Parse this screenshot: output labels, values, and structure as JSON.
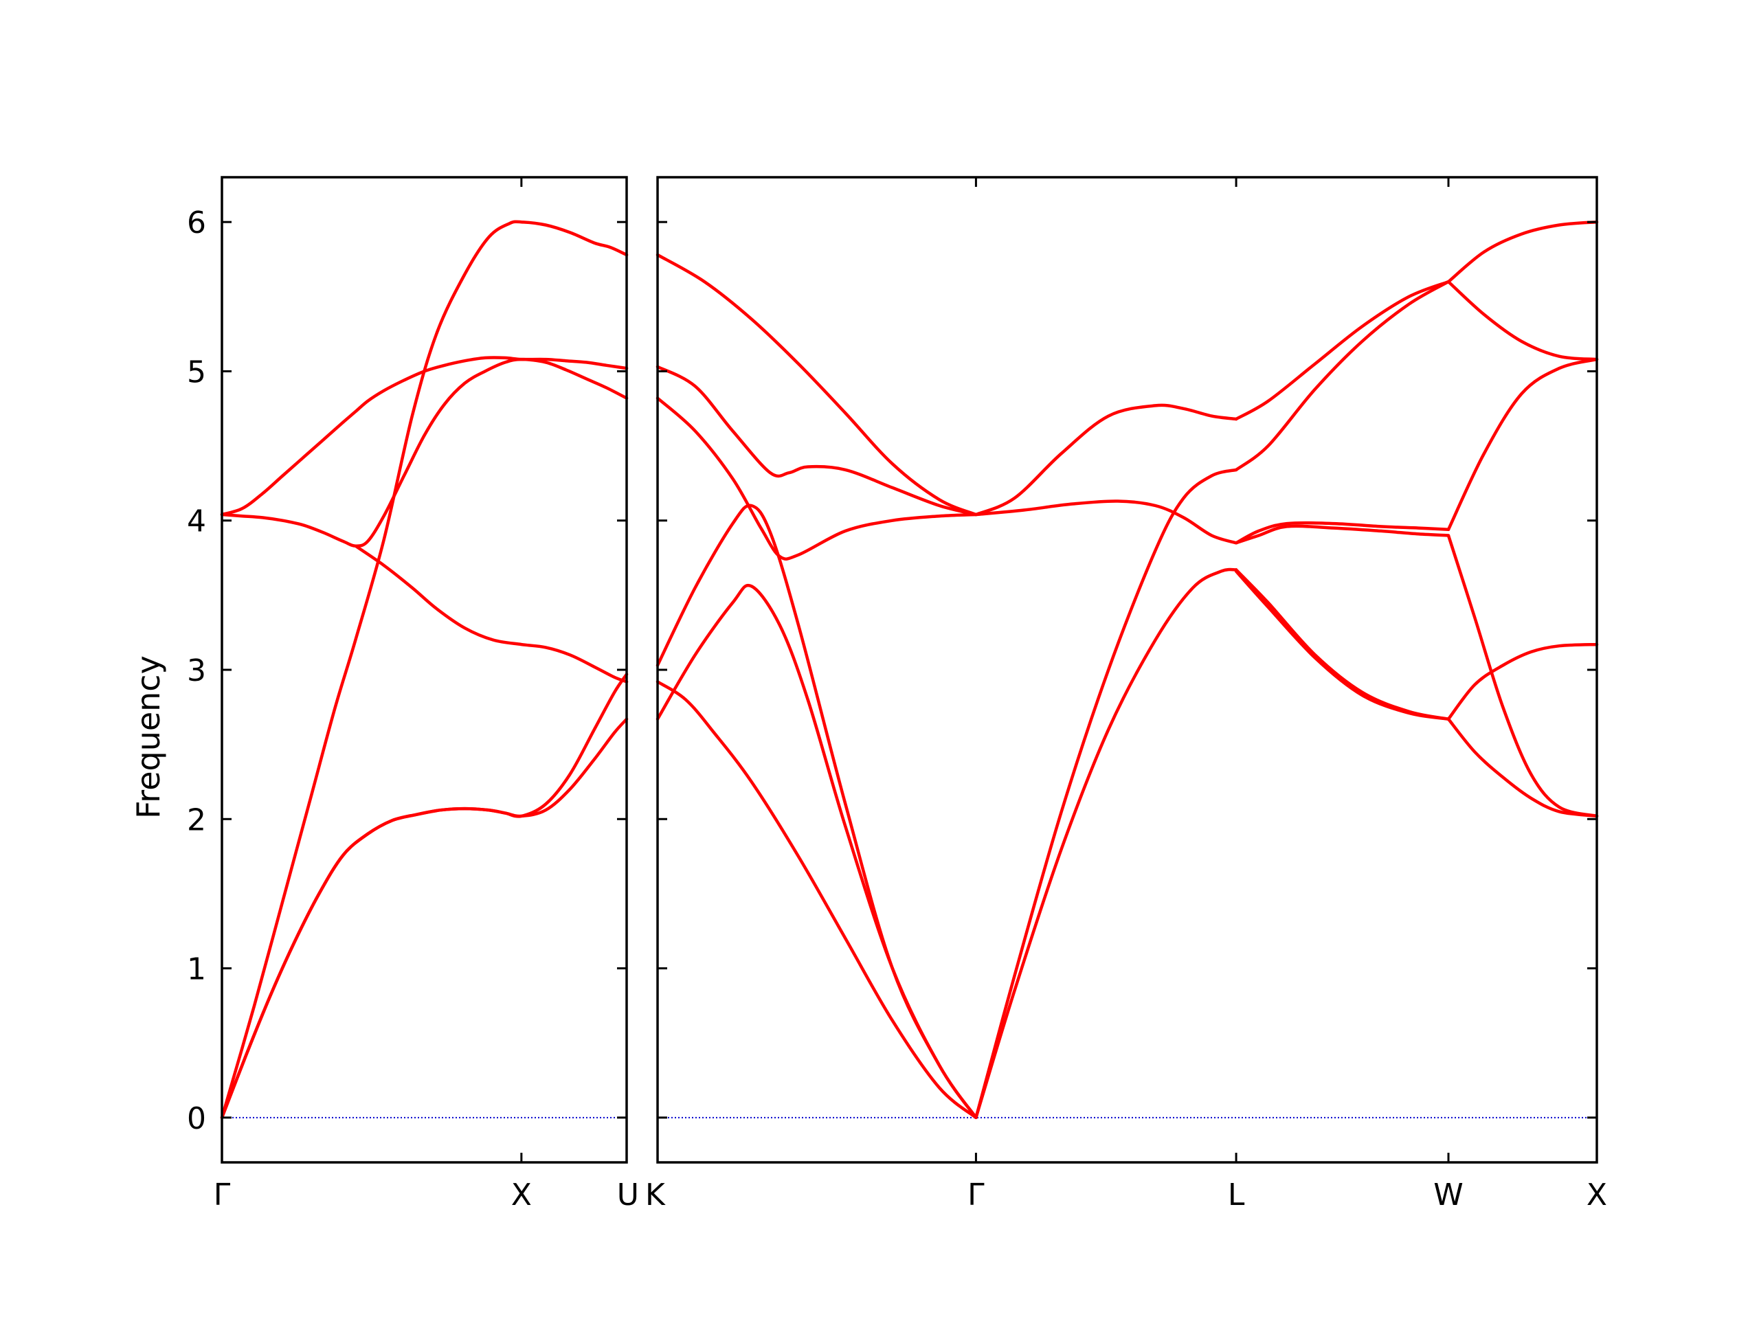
{
  "chart_data": {
    "type": "line",
    "ylabel": "Frequency",
    "ylim": [
      -0.3,
      6.3
    ],
    "yticks": [
      0,
      1,
      2,
      3,
      4,
      5,
      6
    ],
    "line_color": "#ff0000",
    "zero_line_color": "#0000cc",
    "grid": false,
    "panels": [
      {
        "xlim": [
          0,
          1
        ],
        "kpoints": [
          {
            "label": "Γ",
            "x": 0
          },
          {
            "label": "X",
            "x": 0.74
          },
          {
            "label": "U",
            "x": 1
          }
        ],
        "series": [
          {
            "x": [
              0,
              0.08,
              0.15,
              0.22,
              0.28,
              0.33,
              0.4,
              0.47,
              0.53,
              0.6,
              0.66,
              0.71,
              0.74,
              0.8,
              0.86,
              0.92,
              0.96,
              1
            ],
            "values": [
              0,
              0.75,
              1.45,
              2.15,
              2.75,
              3.2,
              3.87,
              4.7,
              5.25,
              5.65,
              5.9,
              5.99,
              6.0,
              5.98,
              5.93,
              5.86,
              5.83,
              5.78
            ]
          },
          {
            "x": [
              0,
              0.05,
              0.1,
              0.15,
              0.2,
              0.25,
              0.3,
              0.33,
              0.36,
              0.4,
              0.45,
              0.5,
              0.55,
              0.6,
              0.65,
              0.7,
              0.74,
              0.8,
              0.85,
              0.9,
              0.95,
              1
            ],
            "values": [
              4.04,
              4.08,
              4.18,
              4.3,
              4.42,
              4.54,
              4.66,
              4.73,
              4.8,
              4.87,
              4.94,
              5.0,
              5.04,
              5.07,
              5.09,
              5.09,
              5.08,
              5.08,
              5.07,
              5.06,
              5.04,
              5.02
            ]
          },
          {
            "x": [
              0,
              0.05,
              0.1,
              0.15,
              0.2,
              0.25,
              0.3,
              0.33,
              0.36,
              0.4,
              0.45,
              0.5,
              0.55,
              0.6,
              0.65,
              0.7,
              0.74,
              0.8,
              0.85,
              0.9,
              0.95,
              1
            ],
            "values": [
              4.04,
              4.03,
              4.02,
              4.0,
              3.97,
              3.92,
              3.86,
              3.83,
              3.86,
              4.03,
              4.3,
              4.57,
              4.78,
              4.92,
              5.0,
              5.06,
              5.08,
              5.06,
              5.01,
              4.95,
              4.89,
              4.82
            ]
          },
          {
            "x": [
              0,
              0.06,
              0.12,
              0.18,
              0.24,
              0.3,
              0.36,
              0.42,
              0.48,
              0.54,
              0.6,
              0.66,
              0.7,
              0.74,
              0.8,
              0.86,
              0.92,
              0.97,
              1
            ],
            "values": [
              0,
              0.42,
              0.82,
              1.18,
              1.5,
              1.76,
              1.9,
              1.99,
              2.03,
              2.06,
              2.07,
              2.06,
              2.04,
              2.02,
              2.1,
              2.3,
              2.6,
              2.85,
              2.97
            ]
          },
          {
            "x": [
              0,
              0.06,
              0.12,
              0.18,
              0.24,
              0.3,
              0.36,
              0.42,
              0.48,
              0.54,
              0.6,
              0.66,
              0.7,
              0.74,
              0.8,
              0.86,
              0.92,
              0.97,
              1
            ],
            "values": [
              0,
              0.42,
              0.82,
              1.18,
              1.5,
              1.76,
              1.9,
              1.99,
              2.03,
              2.06,
              2.07,
              2.06,
              2.04,
              2.02,
              2.06,
              2.2,
              2.4,
              2.58,
              2.67
            ]
          },
          {
            "x": [
              0.33,
              0.4,
              0.47,
              0.53,
              0.6,
              0.67,
              0.74,
              0.8,
              0.86,
              0.92,
              0.97,
              1
            ],
            "values": [
              3.83,
              3.7,
              3.55,
              3.41,
              3.28,
              3.2,
              3.17,
              3.15,
              3.1,
              3.02,
              2.95,
              2.92
            ]
          }
        ]
      },
      {
        "xlim": [
          0,
          1
        ],
        "kpoints": [
          {
            "label": "K",
            "x": 0
          },
          {
            "label": "Γ",
            "x": 0.339
          },
          {
            "label": "L",
            "x": 0.616
          },
          {
            "label": "W",
            "x": 0.842
          },
          {
            "label": "X",
            "x": 1
          }
        ],
        "series": [
          {
            "x": [
              0,
              0.05,
              0.1,
              0.15,
              0.2,
              0.25,
              0.3,
              0.339
            ],
            "values": [
              5.78,
              5.6,
              5.35,
              5.05,
              4.72,
              4.38,
              4.14,
              4.04
            ]
          },
          {
            "x": [
              0,
              0.04,
              0.08,
              0.12,
              0.14,
              0.16,
              0.2,
              0.25,
              0.3,
              0.339
            ],
            "values": [
              5.03,
              4.9,
              4.6,
              4.32,
              4.32,
              4.36,
              4.34,
              4.22,
              4.1,
              4.04
            ]
          },
          {
            "x": [
              0,
              0.04,
              0.08,
              0.11,
              0.13,
              0.15,
              0.2,
              0.25,
              0.3,
              0.339
            ],
            "values": [
              4.82,
              4.6,
              4.28,
              3.95,
              3.76,
              3.77,
              3.93,
              4.0,
              4.03,
              4.04
            ]
          },
          {
            "x": [
              0,
              0.04,
              0.08,
              0.1,
              0.12,
              0.15,
              0.2,
              0.25,
              0.3,
              0.339
            ],
            "values": [
              3.03,
              3.55,
              3.98,
              4.1,
              3.92,
              3.3,
              2.1,
              1.0,
              0.35,
              0
            ]
          },
          {
            "x": [
              0,
              0.04,
              0.08,
              0.1,
              0.13,
              0.16,
              0.2,
              0.25,
              0.3,
              0.339
            ],
            "values": [
              2.67,
              3.1,
              3.45,
              3.56,
              3.3,
              2.8,
              1.95,
              1.0,
              0.35,
              0
            ]
          },
          {
            "x": [
              0,
              0.03,
              0.06,
              0.1,
              0.15,
              0.2,
              0.25,
              0.3,
              0.339
            ],
            "values": [
              2.92,
              2.8,
              2.58,
              2.25,
              1.75,
              1.2,
              0.65,
              0.2,
              0
            ]
          },
          {
            "x": [
              0.339,
              0.38,
              0.43,
              0.48,
              0.53,
              0.56,
              0.59,
              0.616
            ],
            "values": [
              0,
              0.95,
              2.05,
              3.0,
              3.8,
              4.15,
              4.3,
              4.34
            ]
          },
          {
            "x": [
              0.339,
              0.38,
              0.43,
              0.48,
              0.53,
              0.57,
              0.6,
              0.616
            ],
            "values": [
              0,
              0.85,
              1.8,
              2.6,
              3.2,
              3.55,
              3.66,
              3.67
            ]
          },
          {
            "x": [
              0.339,
              0.39,
              0.44,
              0.49,
              0.53,
              0.56,
              0.59,
              0.616
            ],
            "values": [
              4.04,
              4.07,
              4.11,
              4.13,
              4.1,
              4.02,
              3.9,
              3.85
            ]
          },
          {
            "x": [
              0.339,
              0.38,
              0.43,
              0.48,
              0.53,
              0.56,
              0.59,
              0.616
            ],
            "values": [
              4.04,
              4.15,
              4.45,
              4.7,
              4.77,
              4.75,
              4.7,
              4.68
            ]
          },
          {
            "x": [
              0.616,
              0.65,
              0.7,
              0.75,
              0.8,
              0.842
            ],
            "values": [
              4.34,
              4.5,
              4.88,
              5.2,
              5.45,
              5.6
            ]
          },
          {
            "x": [
              0.616,
              0.65,
              0.7,
              0.75,
              0.8,
              0.842
            ],
            "values": [
              4.68,
              4.8,
              5.05,
              5.3,
              5.5,
              5.6
            ]
          },
          {
            "x": [
              0.616,
              0.64,
              0.67,
              0.72,
              0.77,
              0.81,
              0.842
            ],
            "values": [
              3.85,
              3.93,
              3.98,
              3.98,
              3.96,
              3.95,
              3.94
            ]
          },
          {
            "x": [
              0.616,
              0.64,
              0.67,
              0.72,
              0.77,
              0.81,
              0.842
            ],
            "values": [
              3.85,
              3.9,
              3.96,
              3.95,
              3.93,
              3.91,
              3.9
            ]
          },
          {
            "x": [
              0.616,
              0.65,
              0.7,
              0.75,
              0.8,
              0.842
            ],
            "values": [
              3.67,
              3.45,
              3.1,
              2.85,
              2.72,
              2.67
            ]
          },
          {
            "x": [
              0.616,
              0.65,
              0.7,
              0.75,
              0.8,
              0.842
            ],
            "values": [
              3.66,
              3.42,
              3.08,
              2.83,
              2.71,
              2.67
            ]
          },
          {
            "x": [
              0.842,
              0.88,
              0.92,
              0.96,
              1
            ],
            "values": [
              5.6,
              5.8,
              5.92,
              5.98,
              6.0
            ]
          },
          {
            "x": [
              0.842,
              0.88,
              0.92,
              0.96,
              1
            ],
            "values": [
              5.6,
              5.38,
              5.2,
              5.1,
              5.08
            ]
          },
          {
            "x": [
              0.842,
              0.88,
              0.92,
              0.96,
              1
            ],
            "values": [
              3.94,
              4.45,
              4.85,
              5.02,
              5.08
            ]
          },
          {
            "x": [
              0.842,
              0.87,
              0.9,
              0.93,
              0.96,
              1
            ],
            "values": [
              3.9,
              3.35,
              2.75,
              2.3,
              2.08,
              2.02
            ]
          },
          {
            "x": [
              0.842,
              0.87,
              0.9,
              0.93,
              0.96,
              1
            ],
            "values": [
              2.67,
              2.9,
              3.03,
              3.12,
              3.16,
              3.17
            ]
          },
          {
            "x": [
              0.842,
              0.87,
              0.9,
              0.93,
              0.96,
              1
            ],
            "values": [
              2.67,
              2.45,
              2.28,
              2.14,
              2.05,
              2.02
            ]
          }
        ]
      }
    ]
  }
}
